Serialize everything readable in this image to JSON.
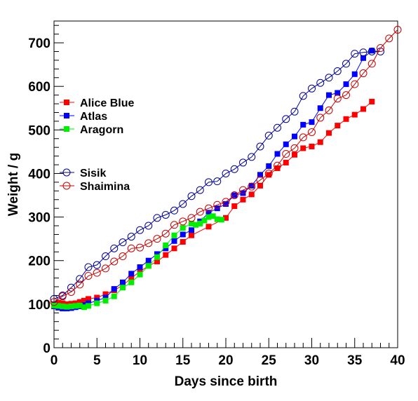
{
  "chart_data": {
    "type": "scatter",
    "title": "",
    "xlabel": "Days since birth",
    "ylabel": "Weight / g",
    "xlim": [
      0,
      40
    ],
    "ylim": [
      0,
      750
    ],
    "xticks": [
      0,
      5,
      10,
      15,
      20,
      25,
      30,
      35,
      40
    ],
    "xtick_labels": [
      "0",
      "5",
      "10",
      "15",
      "20",
      "25",
      "30",
      "35",
      "40"
    ],
    "yticks": [
      0,
      100,
      200,
      300,
      400,
      500,
      600,
      700
    ],
    "ytick_labels": [
      "0",
      "100",
      "200",
      "300",
      "400",
      "500",
      "600",
      "700"
    ],
    "grid": false,
    "legend": {
      "groups": [
        {
          "placement": "upper-left",
          "entries": [
            "Alice Blue",
            "Atlas",
            "Aragorn"
          ]
        },
        {
          "placement": "middle-left",
          "entries": [
            "Sisik",
            "Shaimina"
          ]
        }
      ]
    },
    "series": [
      {
        "name": "Alice Blue",
        "color": "#ff0000",
        "marker": "filled-square",
        "x": [
          0,
          0.5,
          1,
          1.5,
          2,
          2.5,
          3,
          3.5,
          4,
          5,
          6,
          7,
          8,
          9,
          10,
          11,
          12,
          13,
          14,
          15,
          16,
          18,
          20,
          21,
          22,
          23,
          24,
          25,
          26,
          27,
          28,
          29,
          30,
          31,
          32,
          33,
          34,
          35,
          36,
          37
        ],
        "y": [
          100,
          103,
          102,
          100,
          101,
          102,
          105,
          108,
          112,
          115,
          123,
          132,
          143,
          160,
          175,
          188,
          198,
          213,
          228,
          243,
          258,
          278,
          298,
          325,
          340,
          352,
          372,
          397,
          412,
          425,
          443,
          458,
          462,
          472,
          493,
          510,
          525,
          535,
          548,
          565
        ]
      },
      {
        "name": "Atlas",
        "color": "#0000ff",
        "marker": "filled-square",
        "x": [
          0,
          0.5,
          1,
          1.5,
          2,
          2.5,
          3,
          3.5,
          4,
          5,
          6,
          7,
          8,
          9,
          10,
          11,
          12,
          13,
          14,
          15,
          16,
          17,
          18,
          19,
          20,
          21,
          22,
          23,
          24,
          25,
          26,
          27,
          28,
          29,
          30,
          31,
          32,
          33,
          34,
          35,
          36,
          37
        ],
        "y": [
          95,
          92,
          90,
          90,
          91,
          93,
          95,
          98,
          102,
          108,
          115,
          135,
          150,
          170,
          185,
          200,
          215,
          228,
          245,
          260,
          270,
          290,
          310,
          320,
          330,
          350,
          355,
          372,
          397,
          417,
          445,
          467,
          485,
          512,
          518,
          550,
          580,
          585,
          605,
          628,
          665,
          682
        ]
      },
      {
        "name": "Aragorn",
        "color": "#00ee00",
        "marker": "filled-square",
        "x": [
          0,
          0.5,
          1,
          1.5,
          2,
          2.5,
          3,
          3.5,
          4,
          5,
          6,
          7,
          8,
          9,
          10,
          11,
          12,
          13,
          14,
          15,
          16,
          16.5,
          17,
          17.5,
          18,
          18.5,
          19,
          19.5
        ],
        "y": [
          97,
          96,
          95,
          94,
          95,
          96,
          97,
          93,
          96,
          102,
          108,
          118,
          138,
          150,
          168,
          188,
          208,
          235,
          258,
          275,
          285,
          282,
          285,
          292,
          300,
          302,
          295,
          294
        ]
      },
      {
        "name": "Sisik",
        "color": "#000099",
        "marker": "open-circle",
        "x": [
          0,
          1,
          2,
          3,
          4,
          5,
          6,
          7,
          8,
          9,
          10,
          11,
          12,
          13,
          14,
          15,
          16,
          17,
          18,
          19,
          20,
          21,
          22,
          23,
          24,
          25,
          26,
          27,
          28,
          29,
          30,
          31,
          32,
          33,
          34,
          35,
          36,
          37,
          38
        ],
        "y": [
          112,
          120,
          138,
          158,
          185,
          190,
          210,
          228,
          242,
          255,
          270,
          280,
          298,
          305,
          315,
          330,
          348,
          362,
          380,
          382,
          400,
          410,
          425,
          438,
          462,
          487,
          505,
          525,
          542,
          578,
          595,
          608,
          620,
          635,
          652,
          675,
          678,
          680,
          680
        ]
      },
      {
        "name": "Shaimina",
        "color": "#cc0000",
        "marker": "open-circle",
        "x": [
          0,
          1,
          2,
          3,
          4,
          5,
          6,
          7,
          8,
          9,
          10,
          11,
          12,
          13,
          14,
          15,
          16,
          17,
          18,
          19,
          20,
          21,
          22,
          23,
          24,
          25,
          26,
          27,
          28,
          29,
          30,
          31,
          32,
          33,
          34,
          35,
          36,
          37,
          38,
          39,
          40
        ],
        "y": [
          105,
          118,
          128,
          145,
          165,
          172,
          182,
          198,
          210,
          228,
          230,
          240,
          250,
          262,
          282,
          290,
          298,
          312,
          320,
          328,
          335,
          350,
          362,
          370,
          385,
          400,
          418,
          445,
          458,
          483,
          495,
          528,
          545,
          572,
          580,
          605,
          630,
          652,
          688,
          710,
          730
        ]
      }
    ]
  }
}
